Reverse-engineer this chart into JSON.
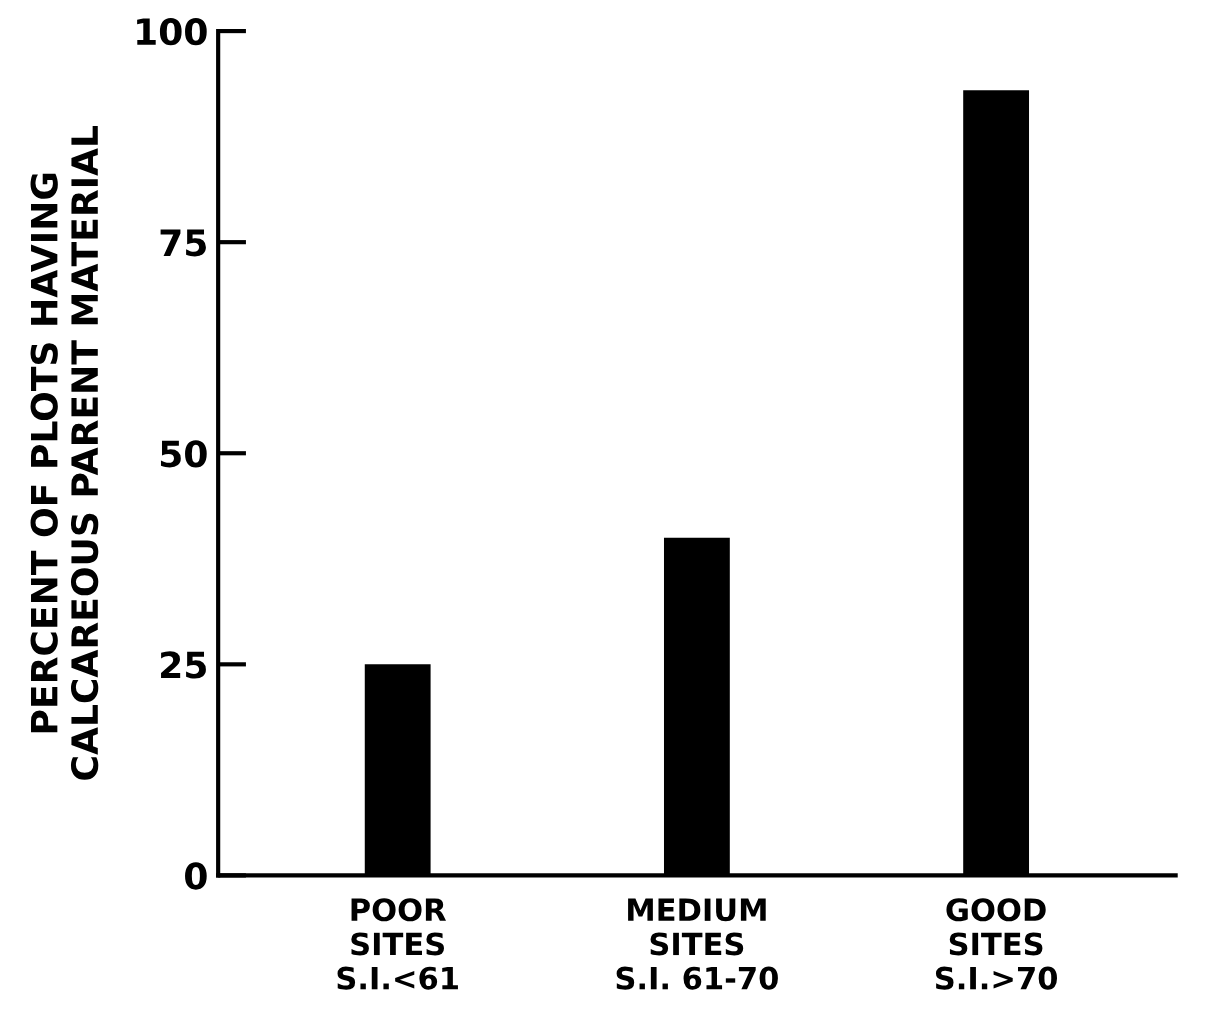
{
  "chart_data": {
    "type": "bar",
    "ylabel": "PERCENT OF PLOTS HAVING\nCALCAREOUS PARENT MATERIAL",
    "categories": [
      "POOR\nSITES\nS.I.<61",
      "MEDIUM\nSITES\nS.I. 61-70",
      "GOOD\nSITES\nS.I.>70"
    ],
    "values": [
      25,
      40,
      93
    ],
    "color": "#000000",
    "ylim": [
      0,
      100
    ],
    "yticks": [
      0,
      25,
      50,
      75,
      100
    ],
    "grid": false
  }
}
